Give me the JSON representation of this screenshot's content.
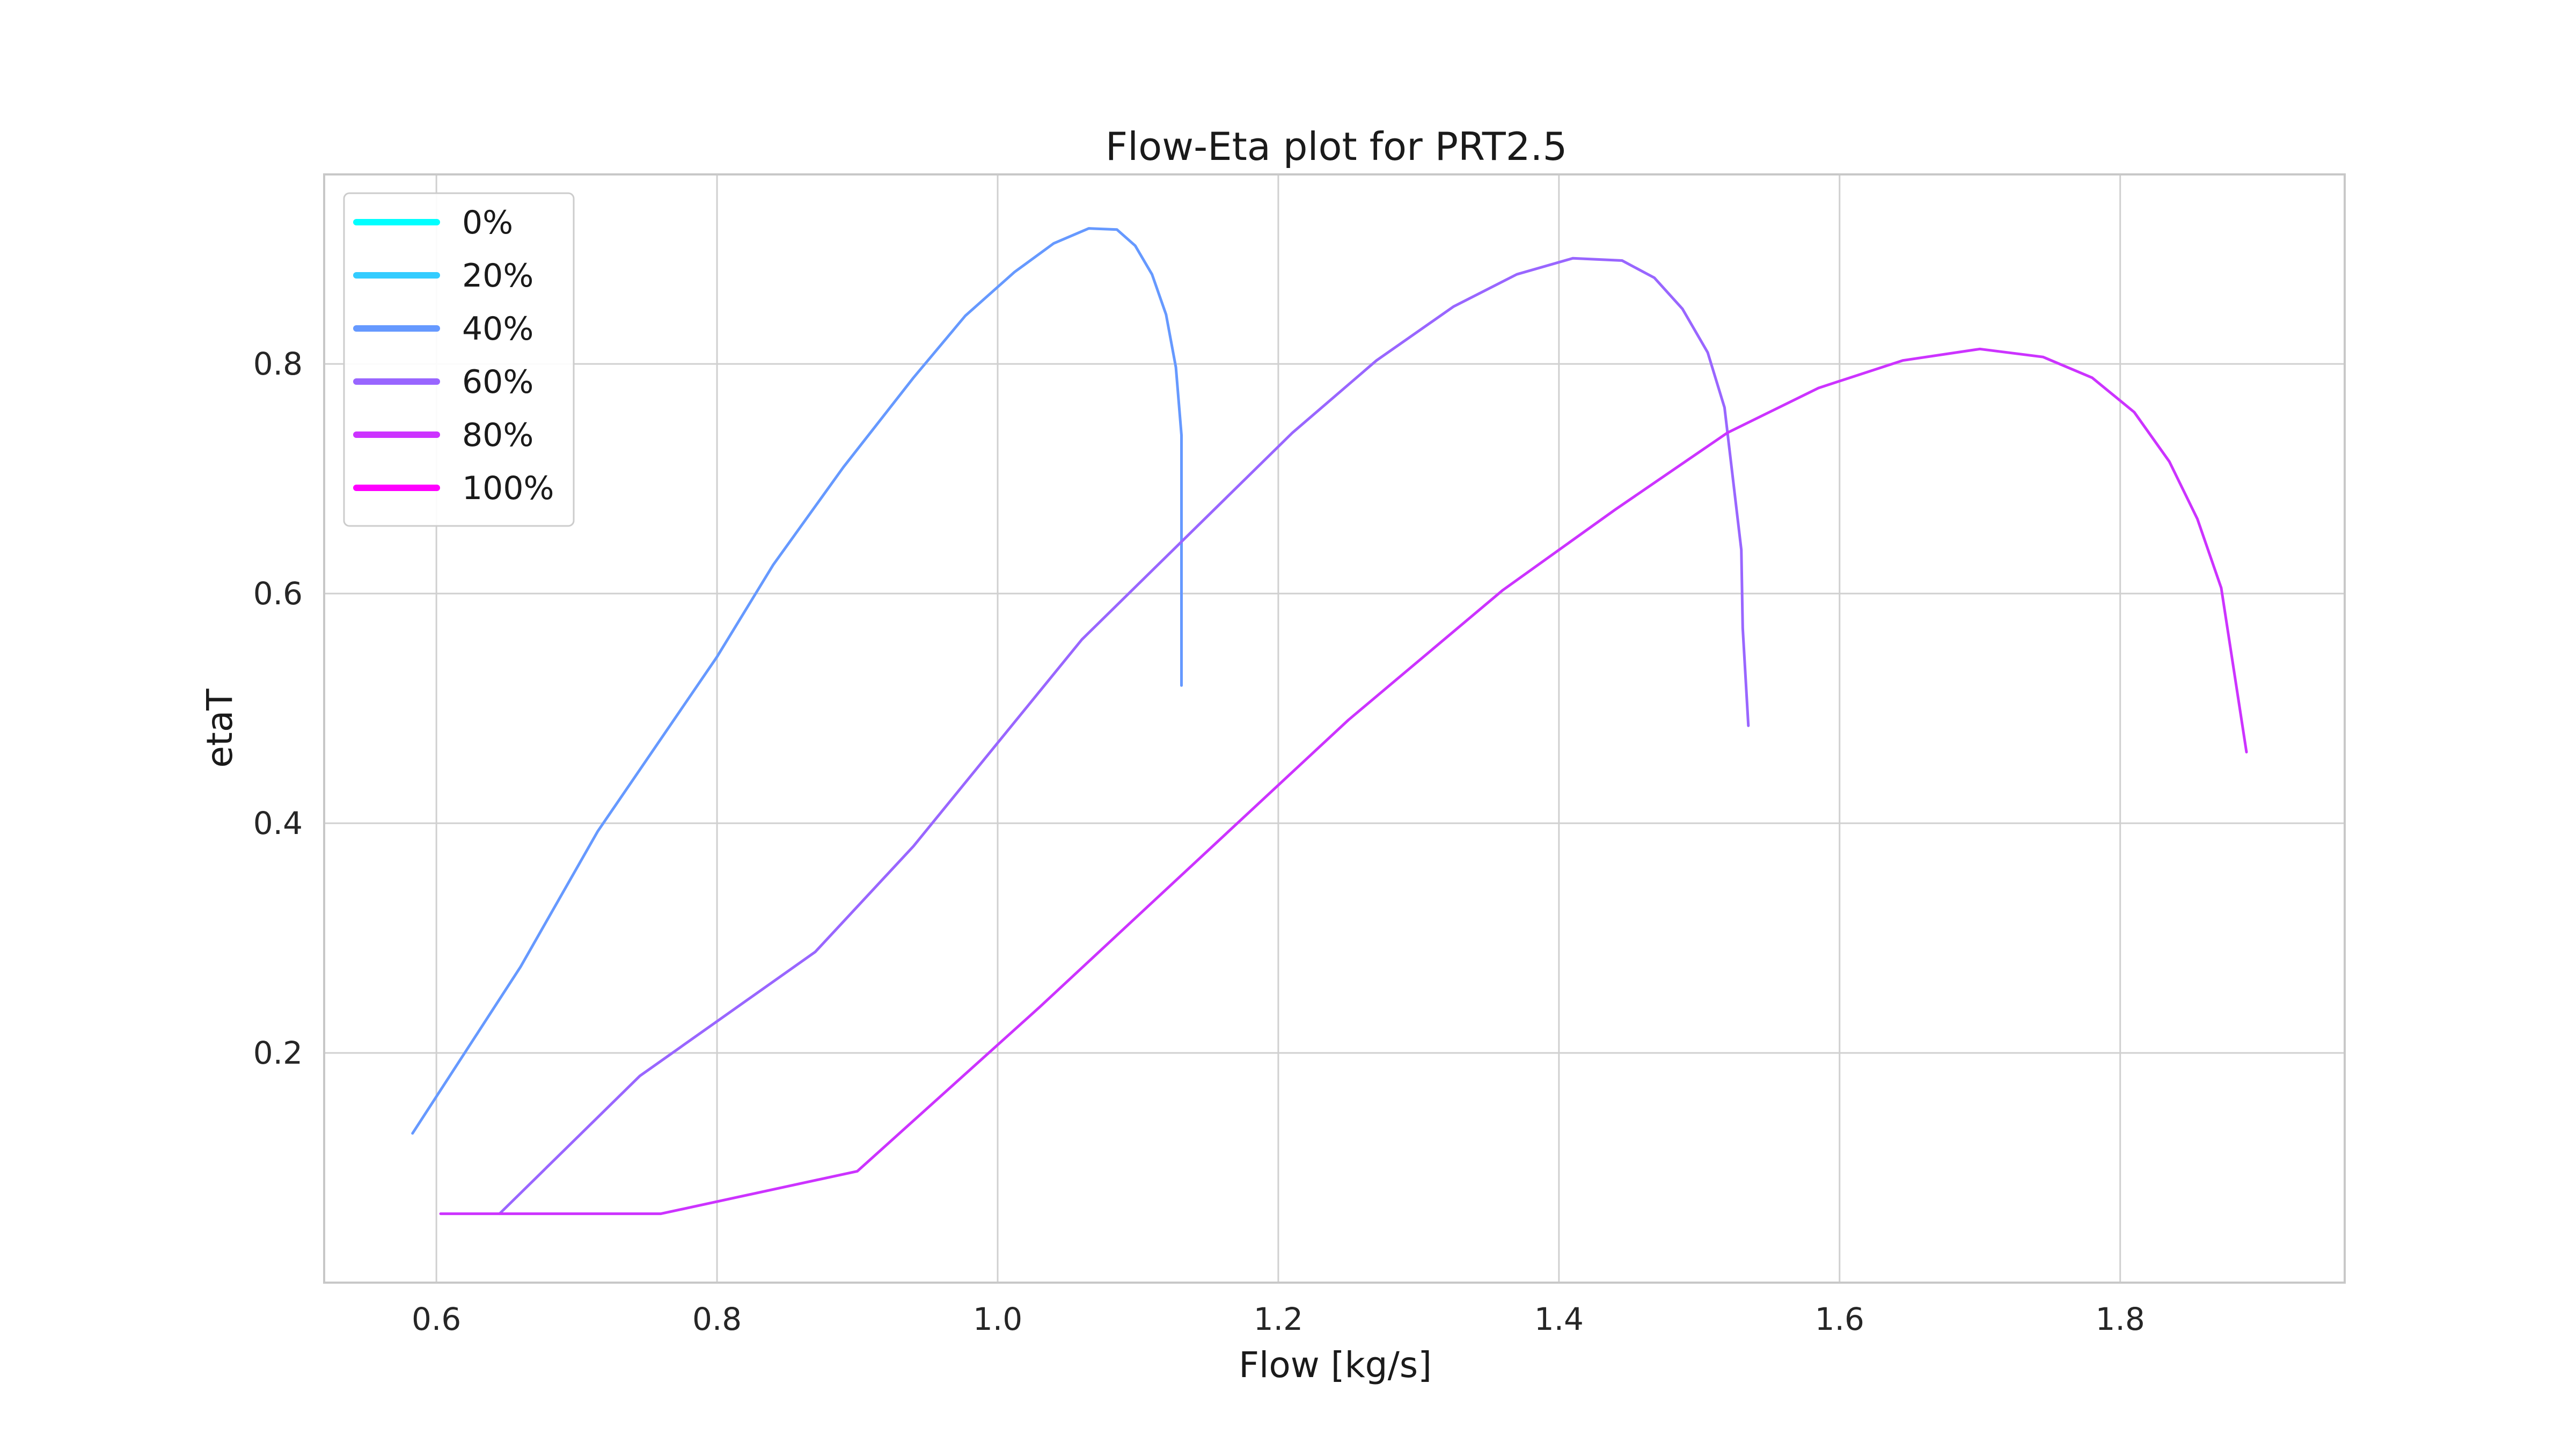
{
  "chart_data": {
    "type": "line",
    "title": "Flow-Eta plot for PRT2.5",
    "xlabel": "Flow [kg/s]",
    "ylabel": "etaT",
    "xlim": [
      0.52,
      1.96
    ],
    "ylim": [
      0.0,
      0.965
    ],
    "xticks": [
      0.6,
      0.8,
      1.0,
      1.2,
      1.4,
      1.6,
      1.8
    ],
    "xtick_labels": [
      "0.6",
      "0.8",
      "1.0",
      "1.2",
      "1.4",
      "1.6",
      "1.8"
    ],
    "yticks": [
      0.2,
      0.4,
      0.6,
      0.8
    ],
    "ytick_labels": [
      "0.2",
      "0.4",
      "0.6",
      "0.8"
    ],
    "grid": true,
    "legend_position": "top-left",
    "series": [
      {
        "name": "0%",
        "color": "#00ffff",
        "x": [],
        "y": []
      },
      {
        "name": "20%",
        "color": "#33ccff",
        "x": [],
        "y": []
      },
      {
        "name": "40%",
        "color": "#6699ff",
        "x": [
          0.583,
          0.66,
          0.715,
          0.8,
          0.84,
          0.89,
          0.94,
          0.977,
          1.012,
          1.04,
          1.065,
          1.085,
          1.098,
          1.11,
          1.12,
          1.127,
          1.131,
          1.131,
          1.131
        ],
        "y": [
          0.13,
          0.275,
          0.393,
          0.545,
          0.625,
          0.71,
          0.788,
          0.842,
          0.88,
          0.905,
          0.918,
          0.917,
          0.903,
          0.878,
          0.843,
          0.797,
          0.738,
          0.6,
          0.52
        ]
      },
      {
        "name": "60%",
        "color": "#9966ff",
        "x": [
          0.645,
          0.745,
          0.87,
          0.94,
          1.06,
          1.21,
          1.27,
          1.325,
          1.37,
          1.41,
          1.445,
          1.468,
          1.488,
          1.506,
          1.518,
          1.53,
          1.531,
          1.535
        ],
        "y": [
          0.06,
          0.18,
          0.288,
          0.38,
          0.56,
          0.74,
          0.803,
          0.85,
          0.878,
          0.892,
          0.89,
          0.875,
          0.848,
          0.81,
          0.762,
          0.638,
          0.57,
          0.485
        ]
      },
      {
        "name": "80%",
        "color": "#cc33ff",
        "x": [
          0.603,
          0.76,
          0.9,
          1.03,
          1.25,
          1.36,
          1.44,
          1.52,
          1.585,
          1.645,
          1.7,
          1.745,
          1.78,
          1.81,
          1.835,
          1.855,
          1.872,
          1.89
        ],
        "y": [
          0.06,
          0.06,
          0.097,
          0.24,
          0.49,
          0.603,
          0.673,
          0.74,
          0.779,
          0.803,
          0.813,
          0.806,
          0.788,
          0.758,
          0.715,
          0.665,
          0.605,
          0.462
        ]
      },
      {
        "name": "100%",
        "color": "#ff00ff",
        "x": [],
        "y": []
      }
    ]
  }
}
